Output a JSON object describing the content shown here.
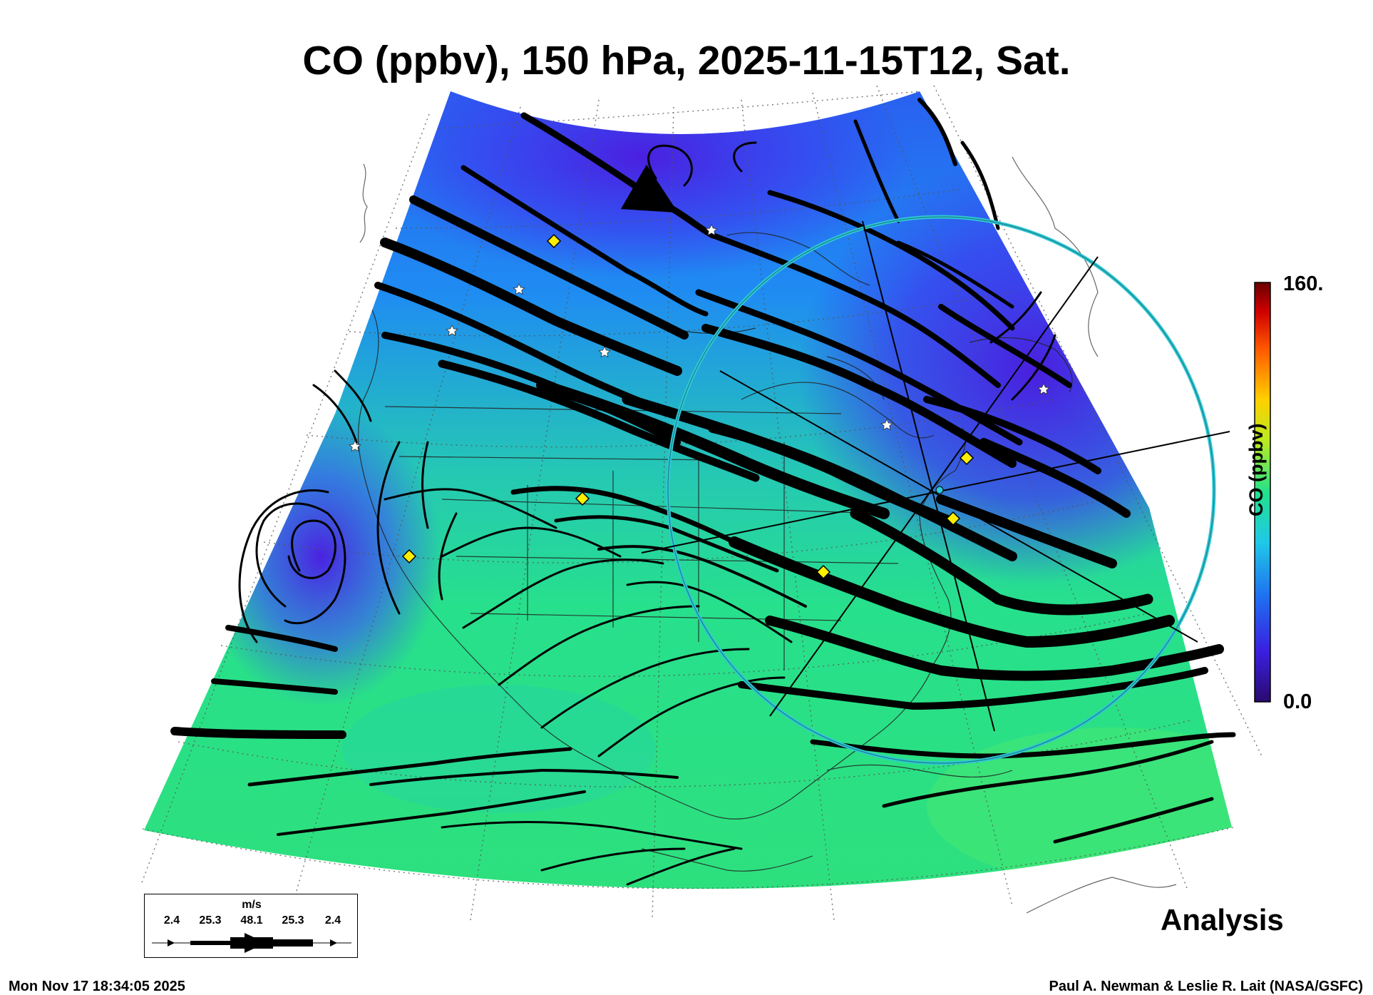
{
  "title": "CO (ppbv), 150 hPa, 2025-11-15T12, Sat.",
  "product_label": "Analysis",
  "footer": {
    "timestamp": "Mon Nov 17 18:34:05 2025",
    "credit": "Paul A. Newman & Leslie R. Lait (NASA/GSFC)"
  },
  "colorbar": {
    "title": "CO (ppbv)",
    "max_label": "160.",
    "min_label": "0.0",
    "range": [
      0,
      160
    ]
  },
  "wind_legend": {
    "unit": "m/s",
    "ticks": [
      "2.4",
      "25.3",
      "48.1",
      "25.3",
      "2.4"
    ]
  },
  "colors": {
    "low_co": "#3a1fe0",
    "mid_co": "#1f8ff0",
    "high_co": "#22e28a",
    "range_ring": "#30c8d6",
    "marker_fill": "#ffee00"
  },
  "overlays": {
    "flight_markers": "yellow-diamond",
    "stations": "white-star",
    "range_ring": "cyan-circle"
  }
}
